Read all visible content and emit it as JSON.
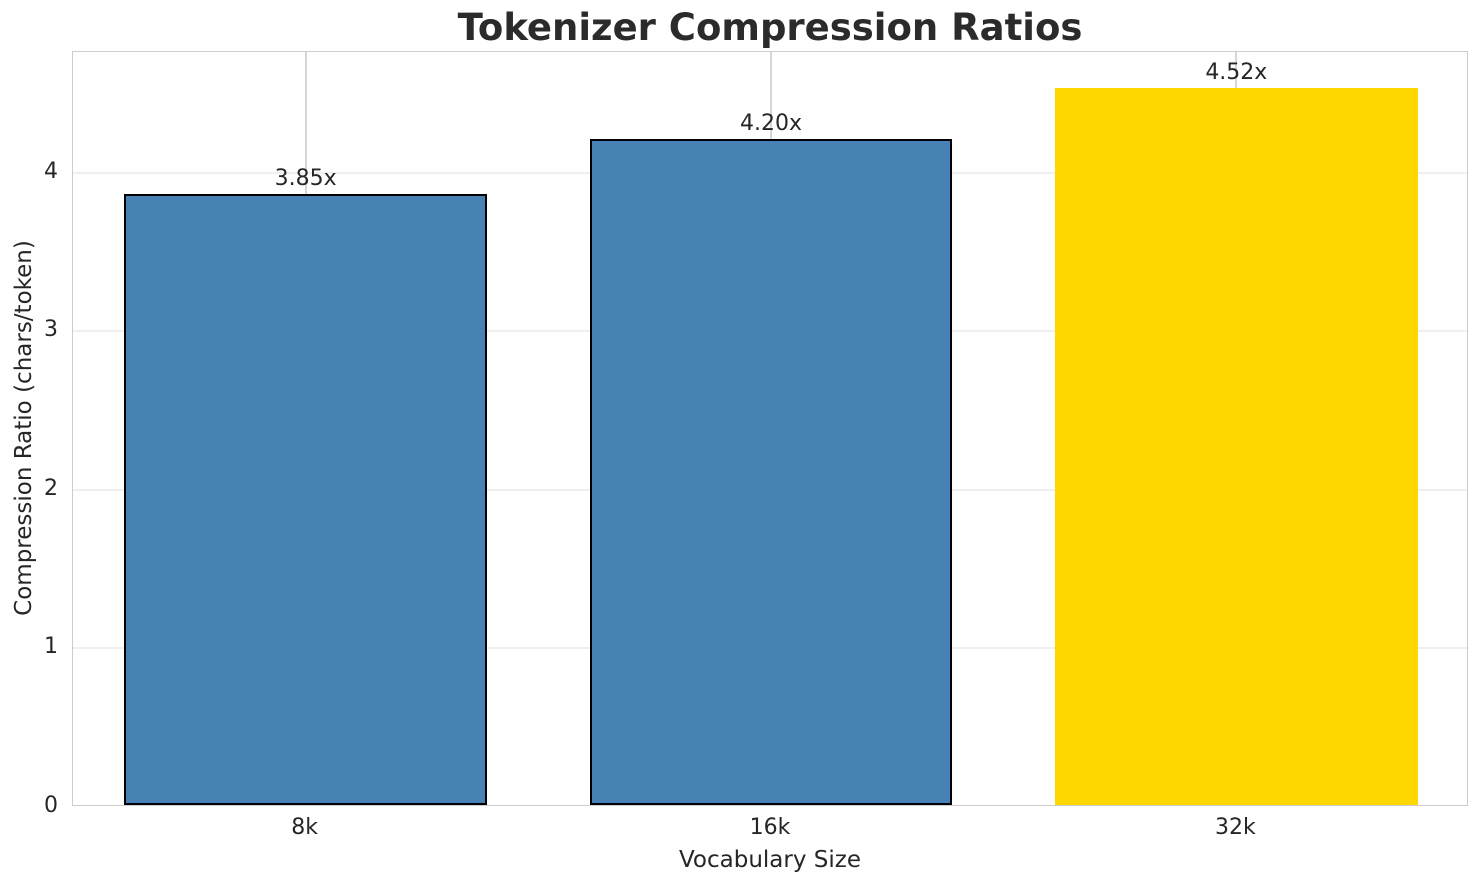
{
  "chart_data": {
    "type": "bar",
    "title": "Tokenizer Compression Ratios",
    "categories": [
      "8k",
      "16k",
      "32k"
    ],
    "values": [
      3.85,
      4.2,
      4.52
    ],
    "bar_labels": [
      "3.85x",
      "4.20x",
      "4.52x"
    ],
    "bar_colors": [
      "#4682B4",
      "#4682B4",
      "#FFD700"
    ],
    "bar_edge_colors": [
      "#000000",
      "#000000",
      "none"
    ],
    "xlabel": "Vocabulary Size",
    "ylabel": "Compression Ratio (chars/token)",
    "ytick_labels": [
      "0",
      "1",
      "2",
      "3",
      "4"
    ],
    "ytick_values": [
      0,
      1,
      2,
      3,
      4
    ],
    "ylim": [
      0,
      4.76
    ],
    "bar_width_fraction": 0.78,
    "grid": "both",
    "legend": "none"
  },
  "colors": {
    "bar_default": "#4682B4",
    "bar_highlight": "#FFD700",
    "text": "#262626",
    "title_text": "#2b2b2b",
    "grid_horizontal": "#efefef",
    "grid_vertical": "#d6d6d6",
    "spine": "#cccccc",
    "background": "#ffffff"
  }
}
